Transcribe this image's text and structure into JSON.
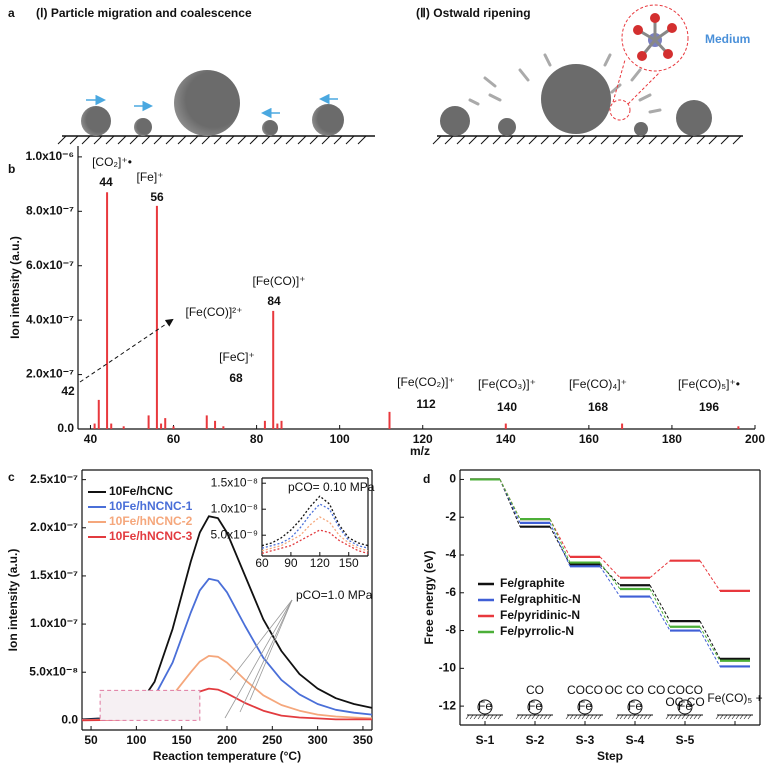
{
  "panel_a": {
    "panel": "a",
    "left_title": "(Ⅰ) Particle migration and coalescence",
    "right_title": "(Ⅱ) Ostwald ripening",
    "medium": "Medium"
  },
  "chart_data": [
    {
      "type": "bar",
      "panel": "b",
      "xlabel": "m/z",
      "ylabel": "Ion intensity (a.u.)",
      "x": [
        41,
        42,
        44,
        45,
        48,
        54,
        56,
        57,
        58,
        60,
        68,
        70,
        72,
        82,
        84,
        85,
        86,
        112,
        140,
        168,
        196
      ],
      "values": [
        2e-08,
        1.07e-07,
        8.7e-07,
        2e-08,
        1e-08,
        5e-08,
        8.2e-07,
        2e-08,
        4e-08,
        1e-08,
        5e-08,
        3e-08,
        1e-08,
        3e-08,
        4.34e-07,
        2e-08,
        3e-08,
        6.3e-08,
        2e-08,
        2e-08,
        1e-08
      ],
      "color": "#e8383d",
      "xlim": [
        37,
        200
      ],
      "ylim": [
        0,
        1.04e-06
      ],
      "xticks": [
        40,
        60,
        80,
        100,
        120,
        140,
        160,
        180,
        200
      ],
      "yticks": [
        {
          "value": 0,
          "label": "0.0"
        },
        {
          "value": 2e-07,
          "label": "2.0x10⁻⁷"
        },
        {
          "value": 4e-07,
          "label": "4.0x10⁻⁷"
        },
        {
          "value": 6e-07,
          "label": "6.0x10⁻⁷"
        },
        {
          "value": 8e-07,
          "label": "8.0x10⁻⁷"
        },
        {
          "value": 1e-06,
          "label": "1.0x10⁻⁶"
        }
      ],
      "annotations": [
        {
          "formula": "[CO₂]⁺•",
          "mz": 44
        },
        {
          "formula": "[Fe]⁺",
          "mz": 56
        },
        {
          "formula": "[Fe(CO)]²⁺",
          "mz": 42
        },
        {
          "formula": "[FeC]⁺",
          "mz": 68
        },
        {
          "formula": "[Fe(CO)]⁺",
          "mz": 84
        },
        {
          "formula": "[Fe(CO₂)]⁺",
          "mz": 112
        },
        {
          "formula": "[Fe(CO₃)]⁺",
          "mz": 140
        },
        {
          "formula": "[Fe(CO)₄]⁺",
          "mz": 168
        },
        {
          "formula": "[Fe(CO)₅]⁺•",
          "mz": 196
        }
      ]
    },
    {
      "type": "line",
      "panel": "c",
      "xlabel": "Reaction temperature (°C)",
      "ylabel": "Ion intensity (a.u.)",
      "x": [
        40,
        60,
        80,
        100,
        120,
        140,
        160,
        170,
        180,
        190,
        200,
        220,
        240,
        260,
        280,
        300,
        320,
        340,
        360
      ],
      "series": [
        {
          "name": "10Fe/hCNC",
          "color": "#111111",
          "values": [
            1e-09,
            2e-09,
            4e-09,
            1.2e-08,
            4e-08,
            9.5e-08,
            1.65e-07,
            1.95e-07,
            2.12e-07,
            2.1e-07,
            1.95e-07,
            1.5e-07,
            1.05e-07,
            7.2e-08,
            4.8e-08,
            3.3e-08,
            2.3e-08,
            1.7e-08,
            1.3e-08
          ]
        },
        {
          "name": "10Fe/hNCNC-1",
          "color": "#4a6fd8",
          "values": [
            5e-10,
            1e-09,
            2e-09,
            7e-09,
            2.5e-08,
            6e-08,
            1.12e-07,
            1.35e-07,
            1.47e-07,
            1.45e-07,
            1.33e-07,
            9.8e-08,
            6.5e-08,
            4.2e-08,
            2.7e-08,
            1.7e-08,
            1.1e-08,
            8e-09,
            6e-09
          ]
        },
        {
          "name": "10Fe/hNCNC-2",
          "color": "#f5a77c",
          "values": [
            3e-10,
            6e-10,
            1e-09,
            3e-09,
            1e-08,
            2.6e-08,
            5e-08,
            6.1e-08,
            6.7e-08,
            6.6e-08,
            6e-08,
            4.2e-08,
            2.6e-08,
            1.6e-08,
            1e-08,
            6e-09,
            4e-09,
            3e-09,
            2e-09
          ]
        },
        {
          "name": "10Fe/hNCNC-3",
          "color": "#e23b3f",
          "values": [
            1e-10,
            3e-10,
            5e-10,
            1.5e-09,
            5e-09,
            1.2e-08,
            2.4e-08,
            3e-08,
            3.3e-08,
            3.2e-08,
            2.8e-08,
            1.8e-08,
            1e-08,
            5e-09,
            3e-09,
            2e-09,
            1e-09,
            1e-09,
            1e-09
          ]
        }
      ],
      "xlim": [
        40,
        360
      ],
      "ylim": [
        -1e-08,
        2.6e-07
      ],
      "xticks": [
        50,
        100,
        150,
        200,
        250,
        300,
        350
      ],
      "yticks": [
        {
          "value": 0,
          "label": "0.0"
        },
        {
          "value": 5e-08,
          "label": "5.0x10⁻⁸"
        },
        {
          "value": 1e-07,
          "label": "1.0x10⁻⁷"
        },
        {
          "value": 1.5e-07,
          "label": "1.5x10⁻⁷"
        },
        {
          "value": 2e-07,
          "label": "2.0x10⁻⁷"
        },
        {
          "value": 2.5e-07,
          "label": "2.5x10⁻⁷"
        }
      ],
      "annotation": "pCO=1.0 MPa"
    },
    {
      "type": "line",
      "line_style": "dotted",
      "x": [
        60,
        70,
        80,
        90,
        100,
        110,
        120,
        130,
        140,
        150,
        160,
        170
      ],
      "series": [
        {
          "color": "#111111",
          "values": [
            3e-09,
            3.5e-09,
            4.5e-09,
            6e-09,
            8e-09,
            1.05e-08,
            1.25e-08,
            1.1e-08,
            7e-09,
            4.5e-09,
            3.5e-09,
            3e-09
          ]
        },
        {
          "color": "#4a6fd8",
          "values": [
            2.5e-09,
            3e-09,
            3.5e-09,
            4.5e-09,
            6.5e-09,
            9e-09,
            1.1e-08,
            1e-08,
            6.5e-09,
            4e-09,
            3e-09,
            2.5e-09
          ]
        },
        {
          "color": "#f5a77c",
          "values": [
            2e-09,
            2.5e-09,
            3e-09,
            4e-09,
            5e-09,
            7e-09,
            8.5e-09,
            7.5e-09,
            5e-09,
            3.5e-09,
            2.5e-09,
            2e-09
          ]
        },
        {
          "color": "#e23b3f",
          "values": [
            1.5e-09,
            2e-09,
            2.5e-09,
            3e-09,
            4e-09,
            5e-09,
            6e-09,
            5.5e-09,
            4e-09,
            3e-09,
            2e-09,
            1.5e-09
          ]
        }
      ],
      "xlim": [
        60,
        170
      ],
      "ylim": [
        1e-09,
        1.6e-08
      ],
      "xticks": [
        60,
        90,
        120,
        150
      ],
      "yticks": [
        {
          "value": 5e-09,
          "label": "5.0x10⁻⁹"
        },
        {
          "value": 1e-08,
          "label": "1.0x10⁻⁸"
        },
        {
          "value": 1.5e-08,
          "label": "1.5x10⁻⁸"
        }
      ],
      "annotation": "pCO= 0.10 MPa"
    },
    {
      "type": "step",
      "panel": "d",
      "xlabel": "Step",
      "ylabel": "Free energy (eV)",
      "categories": [
        "S-1",
        "S-2",
        "S-3",
        "S-4",
        "S-5",
        null
      ],
      "series": [
        {
          "name": "Fe/graphite",
          "color": "#111111",
          "values": [
            0,
            -2.5,
            -4.5,
            -5.6,
            -7.5,
            -9.5
          ]
        },
        {
          "name": "Fe/graphitic-N",
          "color": "#3f5fd6",
          "values": [
            0,
            -2.3,
            -4.6,
            -6.2,
            -8.0,
            -9.9
          ]
        },
        {
          "name": "Fe/pyridinic-N",
          "color": "#e8383d",
          "values": [
            0,
            -2.1,
            -4.1,
            -5.2,
            -4.3,
            -5.9
          ]
        },
        {
          "name": "Fe/pyrrolic-N",
          "color": "#4caf38",
          "values": [
            0,
            -2.1,
            -4.4,
            -5.8,
            -7.8,
            -9.6
          ]
        }
      ],
      "ylim": [
        -13,
        0.5
      ],
      "yticks": [
        0,
        -2,
        -4,
        -6,
        -8,
        -10,
        -12
      ],
      "icons": [
        {
          "metal": "Fe"
        },
        {
          "metal": "Fe",
          "ligands": "CO"
        },
        {
          "metal": "Fe",
          "ligands": "COCO"
        },
        {
          "metal": "Fe",
          "ligands": "OC  CO  CO"
        },
        {
          "metal": "Fe",
          "ligands": "COCO",
          "side": "OC      CO"
        },
        {
          "label": "Fe(CO)₅ +"
        }
      ]
    }
  ]
}
